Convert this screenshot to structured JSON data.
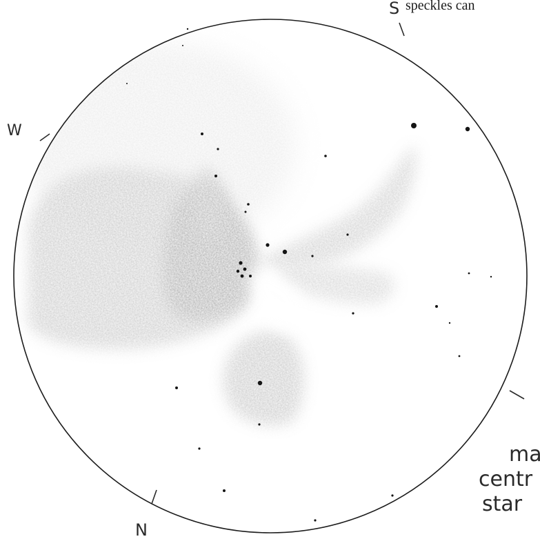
{
  "sketch": {
    "header_fragment": "speckles can",
    "directions": {
      "south": "S",
      "west": "W",
      "north": "N"
    },
    "notes": {
      "line1": "ma",
      "line2": "centr",
      "line3": "star"
    },
    "colors": {
      "paper": "#ffffff",
      "field_outline": "#1c1c1c",
      "nebula": "#6e6e6e",
      "star": "#141414"
    }
  }
}
